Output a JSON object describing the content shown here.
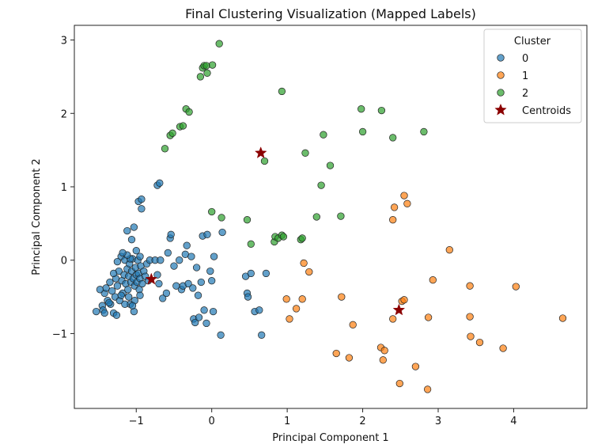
{
  "chart_data": {
    "type": "scatter",
    "title": "Final Clustering Visualization (Mapped Labels)",
    "xlabel": "Principal Component 1",
    "ylabel": "Principal Component 2",
    "xlim": [
      -1.82,
      4.97
    ],
    "ylim": [
      -2.02,
      3.2
    ],
    "xticks": [
      -1,
      0,
      1,
      2,
      3,
      4
    ],
    "yticks": [
      -1,
      0,
      1,
      2,
      3
    ],
    "grid": false,
    "legend": {
      "title": "Cluster",
      "placement": "top-right"
    },
    "series": [
      {
        "name": "0",
        "color": "#1f77b4",
        "points": [
          [
            -1.53,
            -0.7
          ],
          [
            -1.45,
            -0.62
          ],
          [
            -1.42,
            -0.45
          ],
          [
            -1.4,
            -0.38
          ],
          [
            -1.38,
            -0.55
          ],
          [
            -1.35,
            -0.3
          ],
          [
            -1.34,
            -0.6
          ],
          [
            -1.32,
            -0.42
          ],
          [
            -1.3,
            -0.72
          ],
          [
            -1.28,
            -0.5
          ],
          [
            -1.27,
            -0.25
          ],
          [
            -1.25,
            -0.35
          ],
          [
            -1.23,
            -0.15
          ],
          [
            -1.22,
            -0.55
          ],
          [
            -1.2,
            0.05
          ],
          [
            -1.19,
            -0.28
          ],
          [
            -1.18,
            -0.45
          ],
          [
            -1.16,
            -0.2
          ],
          [
            -1.15,
            0.0
          ],
          [
            -1.14,
            -0.32
          ],
          [
            -1.12,
            -0.12
          ],
          [
            -1.11,
            -0.4
          ],
          [
            -1.1,
            -0.22
          ],
          [
            -1.09,
            -0.05
          ],
          [
            -1.08,
            -0.6
          ],
          [
            -1.07,
            -0.3
          ],
          [
            -1.06,
            -0.15
          ],
          [
            -1.05,
            0.02
          ],
          [
            -1.04,
            -0.25
          ],
          [
            -1.03,
            -0.7
          ],
          [
            -1.02,
            -0.35
          ],
          [
            -1.01,
            -0.1
          ],
          [
            -1.0,
            -0.2
          ],
          [
            -0.99,
            -0.3
          ],
          [
            -0.98,
            0.0
          ],
          [
            -0.97,
            -0.18
          ],
          [
            -0.96,
            -0.4
          ],
          [
            -0.95,
            -0.25
          ],
          [
            -0.94,
            -0.08
          ],
          [
            -0.92,
            -0.32
          ],
          [
            -0.9,
            -0.15
          ],
          [
            -0.88,
            -0.22
          ],
          [
            -0.86,
            -0.05
          ],
          [
            -0.84,
            -0.28
          ],
          [
            -0.82,
            0.0
          ],
          [
            -1.25,
            -0.02
          ],
          [
            -1.2,
            -0.48
          ],
          [
            -1.15,
            -0.6
          ],
          [
            -1.1,
            -0.5
          ],
          [
            -1.3,
            -0.18
          ],
          [
            -1.36,
            -0.58
          ],
          [
            -1.44,
            -0.68
          ],
          [
            -1.48,
            -0.4
          ],
          [
            -1.02,
            -0.55
          ],
          [
            -0.95,
            0.05
          ],
          [
            -1.08,
            0.02
          ],
          [
            -1.12,
            0.07
          ],
          [
            -1.18,
            0.1
          ],
          [
            -0.95,
            -0.48
          ],
          [
            -1.26,
            -0.75
          ],
          [
            -1.42,
            -0.72
          ],
          [
            -1.05,
            -0.62
          ],
          [
            -1.0,
            0.13
          ],
          [
            -1.06,
            0.28
          ],
          [
            -1.12,
            0.4
          ],
          [
            -1.03,
            0.45
          ],
          [
            -0.93,
            0.7
          ],
          [
            -0.97,
            0.8
          ],
          [
            -0.93,
            0.83
          ],
          [
            -0.72,
            1.02
          ],
          [
            -0.69,
            1.05
          ],
          [
            -0.75,
            0.0
          ],
          [
            -0.72,
            -0.2
          ],
          [
            -0.7,
            -0.32
          ],
          [
            -0.68,
            0.0
          ],
          [
            -0.65,
            -0.52
          ],
          [
            -0.6,
            -0.45
          ],
          [
            -0.58,
            0.1
          ],
          [
            -0.55,
            0.3
          ],
          [
            -0.54,
            0.35
          ],
          [
            -0.5,
            -0.08
          ],
          [
            -0.47,
            -0.35
          ],
          [
            -0.43,
            0.0
          ],
          [
            -0.4,
            -0.4
          ],
          [
            -0.38,
            -0.35
          ],
          [
            -0.35,
            0.08
          ],
          [
            -0.33,
            0.2
          ],
          [
            -0.31,
            -0.32
          ],
          [
            -0.27,
            0.05
          ],
          [
            -0.25,
            -0.38
          ],
          [
            -0.24,
            -0.8
          ],
          [
            -0.22,
            -0.85
          ],
          [
            -0.2,
            -0.1
          ],
          [
            -0.18,
            -0.48
          ],
          [
            -0.17,
            -0.78
          ],
          [
            -0.14,
            -0.3
          ],
          [
            -0.12,
            0.33
          ],
          [
            -0.1,
            -0.68
          ],
          [
            -0.07,
            -0.86
          ],
          [
            -0.06,
            0.35
          ],
          [
            -0.02,
            -0.15
          ],
          [
            0.0,
            -0.28
          ],
          [
            0.02,
            -0.7
          ],
          [
            0.03,
            0.05
          ],
          [
            0.12,
            -1.02
          ],
          [
            0.14,
            0.38
          ],
          [
            0.45,
            -0.22
          ],
          [
            0.47,
            -0.45
          ],
          [
            0.48,
            -0.5
          ],
          [
            0.52,
            -0.18
          ],
          [
            0.57,
            -0.7
          ],
          [
            0.63,
            -0.68
          ],
          [
            0.66,
            -1.02
          ],
          [
            0.72,
            -0.18
          ]
        ]
      },
      {
        "name": "1",
        "color": "#ff7f0e",
        "points": [
          [
            0.99,
            -0.53
          ],
          [
            1.03,
            -0.8
          ],
          [
            1.12,
            -0.66
          ],
          [
            1.2,
            -0.53
          ],
          [
            1.22,
            -0.04
          ],
          [
            1.29,
            -0.16
          ],
          [
            1.65,
            -1.27
          ],
          [
            1.72,
            -0.5
          ],
          [
            1.82,
            -1.33
          ],
          [
            1.87,
            -0.88
          ],
          [
            2.24,
            -1.19
          ],
          [
            2.27,
            -1.36
          ],
          [
            2.29,
            -1.23
          ],
          [
            2.4,
            0.55
          ],
          [
            2.4,
            -0.8
          ],
          [
            2.42,
            0.72
          ],
          [
            2.49,
            -1.68
          ],
          [
            2.52,
            -0.56
          ],
          [
            2.55,
            -0.54
          ],
          [
            2.55,
            0.88
          ],
          [
            2.59,
            0.77
          ],
          [
            2.7,
            -1.45
          ],
          [
            2.86,
            -1.76
          ],
          [
            2.87,
            -0.78
          ],
          [
            2.93,
            -0.27
          ],
          [
            3.15,
            0.14
          ],
          [
            3.42,
            -0.35
          ],
          [
            3.42,
            -0.77
          ],
          [
            3.43,
            -1.04
          ],
          [
            3.55,
            -1.12
          ],
          [
            3.86,
            -1.2
          ],
          [
            4.03,
            -0.36
          ],
          [
            4.65,
            -0.79
          ]
        ]
      },
      {
        "name": "2",
        "color": "#2ca02c",
        "points": [
          [
            -0.62,
            1.52
          ],
          [
            -0.55,
            1.7
          ],
          [
            -0.52,
            1.73
          ],
          [
            -0.42,
            1.82
          ],
          [
            -0.38,
            1.83
          ],
          [
            -0.34,
            2.06
          ],
          [
            -0.3,
            2.02
          ],
          [
            -0.15,
            2.5
          ],
          [
            -0.12,
            2.62
          ],
          [
            -0.1,
            2.65
          ],
          [
            -0.07,
            2.65
          ],
          [
            -0.06,
            2.55
          ],
          [
            0.01,
            2.66
          ],
          [
            0.0,
            0.66
          ],
          [
            0.1,
            2.95
          ],
          [
            0.13,
            0.58
          ],
          [
            0.47,
            0.55
          ],
          [
            0.52,
            0.22
          ],
          [
            0.7,
            1.35
          ],
          [
            0.83,
            0.25
          ],
          [
            0.84,
            0.32
          ],
          [
            0.88,
            0.3
          ],
          [
            0.93,
            0.34
          ],
          [
            0.93,
            2.3
          ],
          [
            0.95,
            0.32
          ],
          [
            1.18,
            0.28
          ],
          [
            1.2,
            0.3
          ],
          [
            1.24,
            1.46
          ],
          [
            1.39,
            0.59
          ],
          [
            1.45,
            1.02
          ],
          [
            1.48,
            1.71
          ],
          [
            1.57,
            1.29
          ],
          [
            1.71,
            0.6
          ],
          [
            1.98,
            2.06
          ],
          [
            2.0,
            1.75
          ],
          [
            2.25,
            2.04
          ],
          [
            2.4,
            1.67
          ],
          [
            2.81,
            1.75
          ]
        ]
      },
      {
        "name": "Centroids",
        "color": "#8b0000",
        "marker": "star",
        "points": [
          [
            -0.8,
            -0.26
          ],
          [
            0.65,
            1.46
          ],
          [
            2.48,
            -0.68
          ]
        ]
      }
    ]
  }
}
